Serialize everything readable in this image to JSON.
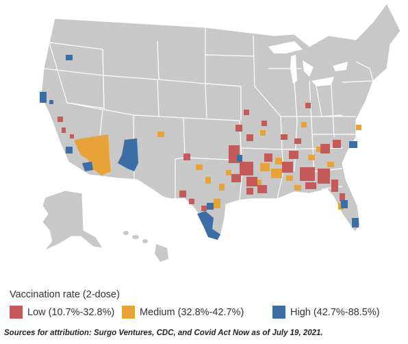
{
  "legend": {
    "title": "Vaccination rate (2-dose)",
    "items": [
      {
        "label": "Low (10.7%-32.8%)",
        "color": "#c55a5a"
      },
      {
        "label": "Medium (32.8%-42.7%)",
        "color": "#e8a23a"
      },
      {
        "label": "High (42.7%-88.5%)",
        "color": "#3a6ea5"
      }
    ]
  },
  "source": "Sources for attribution: Surgo Ventures, CDC, and Covid Act Now as of July 19, 2021.",
  "colors": {
    "land": "#c8c8c8",
    "borders": "#ffffff",
    "background": "#ffffff"
  }
}
